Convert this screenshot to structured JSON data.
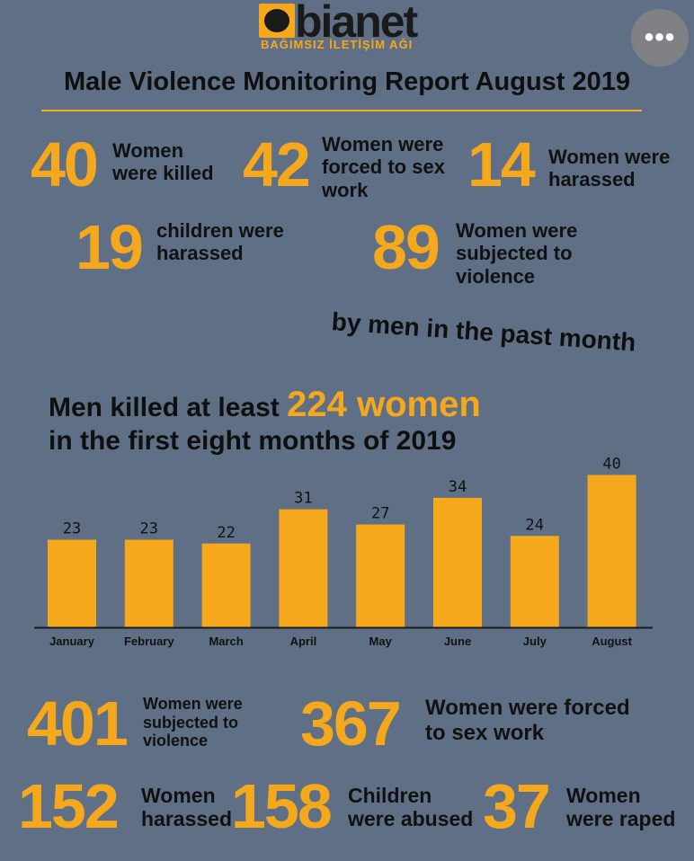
{
  "logo": {
    "word": "bianet",
    "tagline": "BAĞIMSIZ İLETİŞİM AĞI"
  },
  "menu_button": {
    "label": "•••"
  },
  "title": "Male Violence Monitoring Report August 2019",
  "month_stats": [
    {
      "value": "40",
      "label": "Women were killed"
    },
    {
      "value": "42",
      "label": "Women were forced to sex work"
    },
    {
      "value": "14",
      "label": "Women were harassed"
    },
    {
      "value": "19",
      "label": "children were harassed"
    },
    {
      "value": "89",
      "label": "Women were subjected to violence"
    }
  ],
  "tagline": "by men in the past month",
  "headline": {
    "prefix": "Men killed at least",
    "total": "224 women",
    "line2": "in the first eight months of 2019"
  },
  "chart_data": {
    "type": "bar",
    "categories": [
      "January",
      "February",
      "March",
      "April",
      "May",
      "June",
      "July",
      "August"
    ],
    "values": [
      23,
      23,
      22,
      31,
      27,
      34,
      24,
      40
    ],
    "ylim": [
      0,
      42
    ],
    "colors": {
      "bar": "#f6a81d",
      "axis": "#1a1a1a"
    }
  },
  "year_stats": [
    {
      "value": "401",
      "label": "Women were subjected to violence"
    },
    {
      "value": "367",
      "label": "Women were forced to sex work"
    },
    {
      "value": "152",
      "label": "Women harassed"
    },
    {
      "value": "158",
      "label": "Children were abused"
    },
    {
      "value": "37",
      "label": "Women were raped"
    }
  ],
  "colors": {
    "background": "#5f7086",
    "accent": "#f6a81d"
  }
}
